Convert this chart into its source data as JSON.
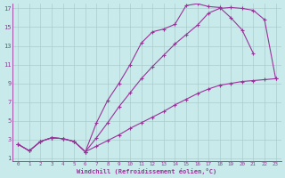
{
  "xlabel": "Windchill (Refroidissement éolien,°C)",
  "bg_color": "#c8eaea",
  "line_color": "#993399",
  "grid_color": "#aacccc",
  "xmin": 0,
  "xmax": 23,
  "ymin": 1,
  "ymax": 17,
  "line1_x": [
    0,
    1,
    2,
    3,
    4,
    5,
    6,
    7,
    8,
    9,
    10,
    11,
    12,
    13,
    14,
    15,
    16,
    17,
    18,
    19,
    20,
    21
  ],
  "line1_y": [
    2.5,
    1.8,
    2.8,
    3.2,
    3.1,
    2.8,
    1.7,
    4.8,
    7.2,
    9.0,
    11.0,
    13.3,
    14.5,
    14.8,
    15.3,
    17.3,
    17.5,
    17.2,
    17.1,
    16.0,
    14.7,
    12.2
  ],
  "line2_x": [
    0,
    1,
    2,
    3,
    4,
    5,
    6,
    7,
    8,
    9,
    10,
    11,
    12,
    13,
    14,
    15,
    16,
    17,
    18,
    19,
    20,
    21,
    22,
    23
  ],
  "line2_y": [
    2.5,
    1.8,
    2.8,
    3.2,
    3.1,
    2.8,
    1.7,
    3.2,
    4.8,
    6.5,
    8.0,
    9.5,
    10.8,
    12.0,
    13.2,
    14.2,
    15.2,
    16.5,
    17.0,
    17.1,
    17.0,
    16.8,
    15.8,
    9.5
  ],
  "line3_x": [
    0,
    1,
    2,
    3,
    4,
    5,
    6,
    7,
    8,
    9,
    10,
    11,
    12,
    13,
    14,
    15,
    16,
    17,
    18,
    19,
    20,
    21,
    22,
    23
  ],
  "line3_y": [
    2.5,
    1.8,
    2.8,
    3.2,
    3.1,
    2.8,
    1.7,
    2.3,
    2.9,
    3.5,
    4.2,
    4.8,
    5.4,
    6.0,
    6.7,
    7.3,
    7.9,
    8.4,
    8.8,
    9.0,
    9.2,
    9.3,
    9.4,
    9.5
  ],
  "xticks": [
    0,
    1,
    2,
    3,
    4,
    5,
    6,
    7,
    8,
    9,
    10,
    11,
    12,
    13,
    14,
    15,
    16,
    17,
    18,
    19,
    20,
    21,
    22,
    23
  ],
  "yticks": [
    1,
    3,
    5,
    7,
    9,
    11,
    13,
    15,
    17
  ]
}
